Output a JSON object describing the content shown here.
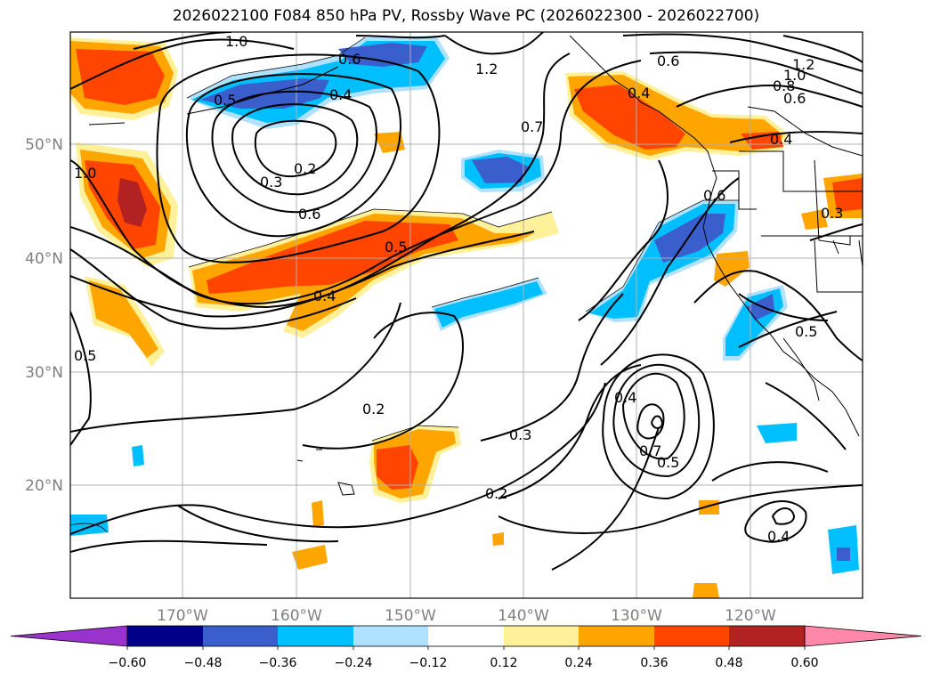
{
  "title": "2026022100 F084 850 hPa PV, Rossby Wave PC (2026022300 - 2026022700)",
  "axes": {
    "lon_labels": [
      "170°W",
      "160°W",
      "150°W",
      "140°W",
      "130°W",
      "120°W"
    ],
    "lat_labels": [
      "50°N",
      "40°N",
      "30°N",
      "20°N"
    ]
  },
  "colorbar": {
    "colors": [
      "#9a32cd",
      "#00008b",
      "#3a5fcd",
      "#00bfff",
      "#b0e2ff",
      "#ffffff",
      "#fff09a",
      "#ffa500",
      "#ff4500",
      "#b22222",
      "#ff88aa"
    ],
    "ticks": [
      "−0.60",
      "−0.48",
      "−0.36",
      "−0.24",
      "−0.12",
      "0.12",
      "0.24",
      "0.36",
      "0.48",
      "0.60"
    ]
  },
  "contour_labels": [
    "1.0",
    "0.6",
    "1.2",
    "0.6",
    "1.2",
    "1.0",
    "0.8",
    "0.6",
    "0.5",
    "0.4",
    "0.7",
    "0.2",
    "0.3",
    "0.6",
    "0.4",
    "1.0",
    "0.5",
    "0.4",
    "0.5",
    "0.6",
    "0.3",
    "0.5",
    "0.2",
    "0.3",
    "0.4",
    "0.7",
    "0.5",
    "0.2",
    "0.4",
    "0.4"
  ]
}
